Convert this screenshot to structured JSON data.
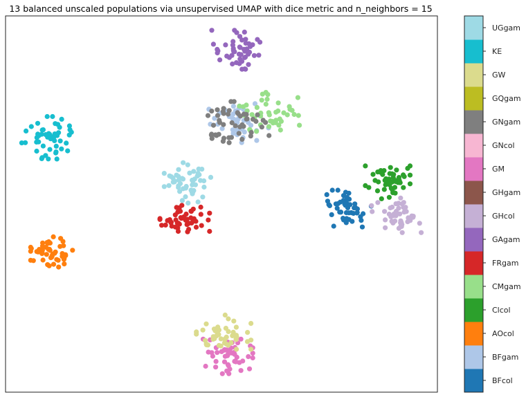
{
  "chart_data": {
    "type": "scatter",
    "title": "13 balanced unscaled populations via unsupervised UMAP with dice metric and n_neighbors = 15",
    "xlabel": "",
    "ylabel": "",
    "axis_ticks": "none",
    "xlim": [
      0,
      100
    ],
    "ylim": [
      0,
      100
    ],
    "grid": false,
    "colorbar": {
      "placement": "right",
      "labels": [
        "BFcol",
        "BFgam",
        "AOcol",
        "Clcol",
        "CMgam",
        "FRgam",
        "GAgam",
        "GHcol",
        "GHgam",
        "GM",
        "GNcol",
        "GNgam",
        "GQgam",
        "GW",
        "KE",
        "UGgam"
      ],
      "colors": [
        "#1f77b4",
        "#aec7e8",
        "#ff7f0e",
        "#2ca02c",
        "#98df8a",
        "#d62728",
        "#9467bd",
        "#c5b0d5",
        "#8c564b",
        "#e377c2",
        "#f7b6d2",
        "#7f7f7f",
        "#bcbd22",
        "#dbdb8d",
        "#17becf",
        "#9edae5"
      ]
    },
    "clusters": [
      {
        "label": "BFcol",
        "color": "#1f77b4",
        "center": [
          79.5,
          48.5
        ],
        "spread": [
          4.5,
          4.5
        ],
        "n": 50
      },
      {
        "label": "BFgam",
        "color": "#aec7e8",
        "center": [
          54.0,
          71.5
        ],
        "spread": [
          6.0,
          4.5
        ],
        "n": 40
      },
      {
        "label": "AOcol",
        "color": "#ff7f0e",
        "center": [
          11.0,
          37.0
        ],
        "spread": [
          4.5,
          4.0
        ],
        "n": 50
      },
      {
        "label": "Clcol",
        "color": "#2ca02c",
        "center": [
          88.5,
          56.0
        ],
        "spread": [
          4.5,
          4.0
        ],
        "n": 50
      },
      {
        "label": "CMgam",
        "color": "#98df8a",
        "center": [
          60.0,
          74.5
        ],
        "spread": [
          7.0,
          4.5
        ],
        "n": 45
      },
      {
        "label": "FRgam",
        "color": "#d62728",
        "center": [
          41.5,
          46.0
        ],
        "spread": [
          5.0,
          3.5
        ],
        "n": 50
      },
      {
        "label": "GAgam",
        "color": "#9467bd",
        "center": [
          53.5,
          91.0
        ],
        "spread": [
          5.0,
          4.5
        ],
        "n": 50
      },
      {
        "label": "GHcol",
        "color": "#c5b0d5",
        "center": [
          90.5,
          47.0
        ],
        "spread": [
          5.0,
          4.0
        ],
        "n": 50
      },
      {
        "label": "GM",
        "color": "#e377c2",
        "center": [
          51.5,
          9.5
        ],
        "spread": [
          5.0,
          4.0
        ],
        "n": 50
      },
      {
        "label": "GNgam",
        "color": "#7f7f7f",
        "center": [
          53.0,
          71.5
        ],
        "spread": [
          7.5,
          5.0
        ],
        "n": 50
      },
      {
        "label": "GW",
        "color": "#dbdb8d",
        "center": [
          50.5,
          16.0
        ],
        "spread": [
          5.5,
          4.0
        ],
        "n": 50
      },
      {
        "label": "KE",
        "color": "#17becf",
        "center": [
          9.5,
          67.5
        ],
        "spread": [
          5.0,
          5.0
        ],
        "n": 50
      },
      {
        "label": "UGgam",
        "color": "#9edae5",
        "center": [
          42.5,
          56.0
        ],
        "spread": [
          5.0,
          5.0
        ],
        "n": 50
      }
    ]
  }
}
